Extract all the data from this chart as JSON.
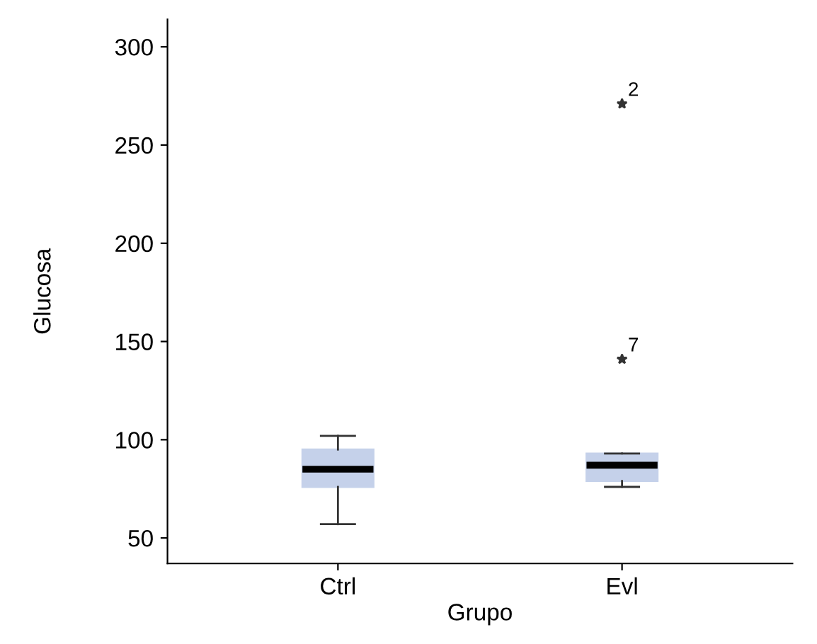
{
  "chart_data": {
    "type": "box",
    "xlabel": "Grupo",
    "ylabel": "Glucosa",
    "categories": [
      "Ctrl",
      "Evl"
    ],
    "boxes": [
      {
        "low": 57,
        "q1": 76,
        "median": 85,
        "q3": 95,
        "high": 102
      },
      {
        "low": 76,
        "q1": 79,
        "median": 87,
        "q3": 93,
        "high": 93,
        "outliers": [
          271,
          141
        ]
      }
    ],
    "color": "#c5d1ea",
    "marker": "star",
    "grid": false,
    "ylim": [
      37,
      314
    ],
    "yticks": [
      50,
      100,
      150,
      200,
      250,
      300
    ],
    "annotations": [
      "2",
      "7"
    ]
  }
}
